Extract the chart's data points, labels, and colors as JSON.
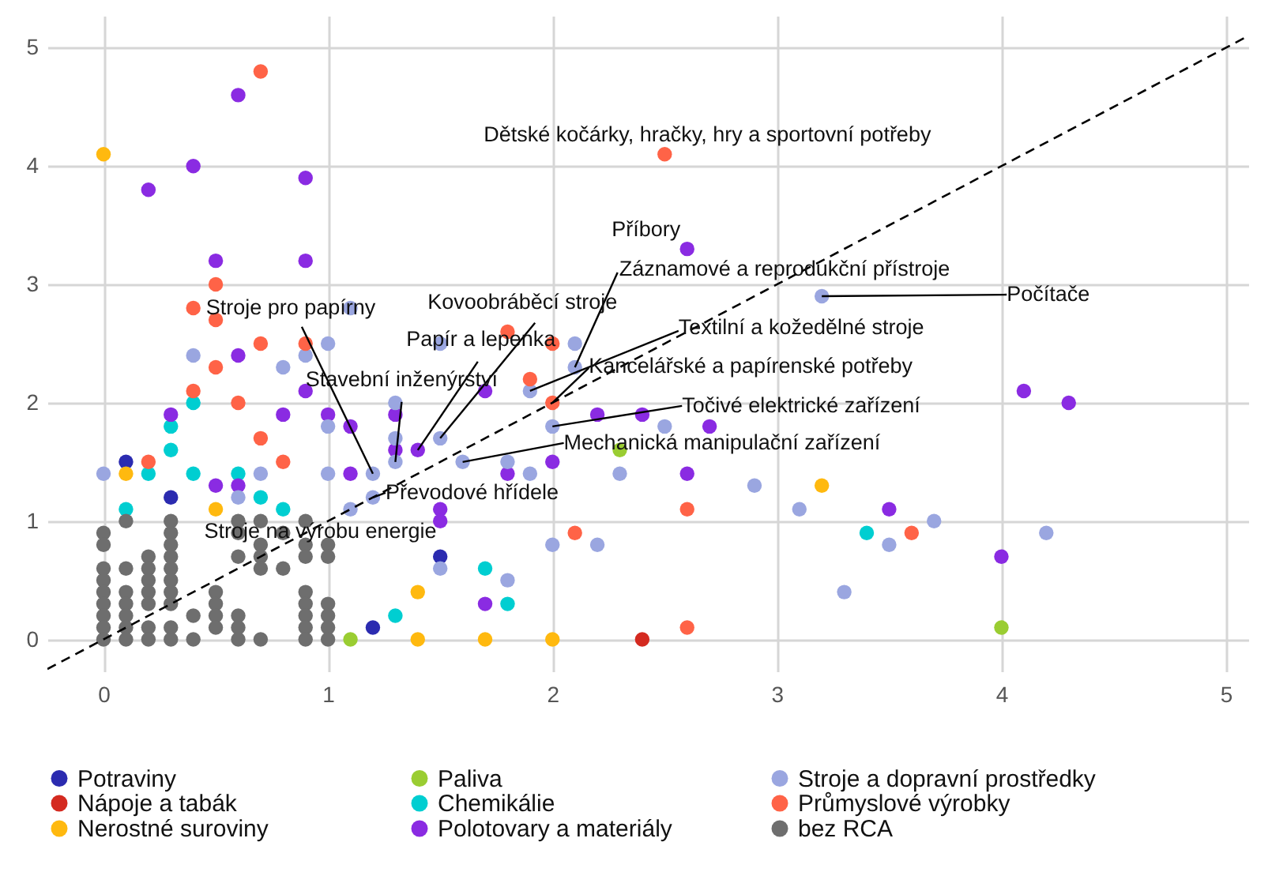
{
  "chart_data": {
    "type": "scatter",
    "marker": "circle",
    "grid": true,
    "legend": "bottom",
    "xlim": [
      -0.25,
      5.1
    ],
    "ylim": [
      -0.27,
      5.27
    ],
    "xticks": [
      0,
      1,
      2,
      3,
      4,
      5
    ],
    "yticks": [
      0,
      1,
      2,
      3,
      4,
      5
    ],
    "series": [
      {
        "name": "Potraviny",
        "color": "#2b2bb0",
        "x": [
          0.1,
          0.3,
          1.2,
          1.5
        ],
        "values": [
          1.5,
          1.2,
          0.1,
          0.7
        ]
      },
      {
        "name": "Nápoje a tabák",
        "color": "#d42a20",
        "x": [
          2.4
        ],
        "values": [
          0
        ]
      },
      {
        "name": "Nerostné suroviny",
        "color": "#ffb90f",
        "x": [
          0,
          0.1,
          0.5,
          1.4,
          1.4,
          1.7,
          2.0,
          3.2
        ],
        "values": [
          4.1,
          1.4,
          1.1,
          0.4,
          0,
          0,
          0,
          1.3
        ]
      },
      {
        "name": "Paliva",
        "color": "#9acd32",
        "x": [
          1.1,
          2.3,
          4.0
        ],
        "values": [
          0,
          1.6,
          0.1
        ]
      },
      {
        "name": "Chemikálie",
        "color": "#00ced1",
        "x": [
          0.1,
          0.2,
          0.3,
          0.3,
          0.4,
          0.4,
          0.6,
          0.7,
          0.8,
          1.3,
          1.7,
          1.8,
          3.4
        ],
        "values": [
          1.1,
          1.4,
          1.8,
          1.6,
          2.0,
          1.4,
          1.4,
          1.2,
          1.1,
          0.2,
          0.6,
          0.3,
          0.9
        ]
      },
      {
        "name": "Polotovary a materiály",
        "color": "#8a2be2",
        "x": [
          0.6,
          0.4,
          0.2,
          0.9,
          0.5,
          0.9,
          0.6,
          0.9,
          0.3,
          0.8,
          1.0,
          1.1,
          0.5,
          0.6,
          1.1,
          1.3,
          1.3,
          1.4,
          1.5,
          1.5,
          1.7,
          1.8,
          2.0,
          2.2,
          2.4,
          2.6,
          2.7,
          2.6,
          1.7,
          4.1,
          4.3,
          3.5,
          4.0
        ],
        "values": [
          4.6,
          4.0,
          3.8,
          3.9,
          3.2,
          3.2,
          2.4,
          2.1,
          1.9,
          1.9,
          1.9,
          1.8,
          1.3,
          1.3,
          1.4,
          1.9,
          1.6,
          1.6,
          1.1,
          1.0,
          2.1,
          1.4,
          1.5,
          1.9,
          1.9,
          3.3,
          1.8,
          1.4,
          0.3,
          2.1,
          2.0,
          1.1,
          0.7
        ]
      },
      {
        "name": "Stroje a dopravní prostředky",
        "color": "#9aa6e0",
        "x": [
          0,
          0.4,
          0.8,
          0.9,
          1.0,
          1.1,
          1.0,
          0.7,
          1.0,
          1.2,
          1.2,
          1.1,
          0.6,
          1.3,
          1.3,
          1.3,
          1.5,
          1.5,
          1.6,
          1.8,
          1.9,
          1.9,
          2.1,
          2.1,
          2.0,
          2.3,
          2.5,
          1.5,
          1.8,
          2.0,
          2.2,
          3.2,
          2.9,
          3.1,
          3.7,
          3.5,
          3.3,
          4.2
        ],
        "values": [
          1.4,
          2.4,
          2.3,
          2.4,
          2.5,
          2.8,
          1.8,
          1.4,
          1.4,
          1.4,
          1.2,
          1.1,
          1.2,
          2.0,
          1.7,
          1.5,
          1.7,
          2.5,
          1.5,
          1.5,
          1.4,
          2.1,
          2.5,
          2.3,
          1.8,
          1.4,
          1.8,
          0.6,
          0.5,
          0.8,
          0.8,
          2.9,
          1.3,
          1.1,
          1.0,
          0.8,
          0.4,
          0.9
        ]
      },
      {
        "name": "Průmyslové výrobky",
        "color": "#ff6347",
        "x": [
          0.7,
          0.5,
          0.4,
          0.5,
          0.7,
          0.9,
          0.5,
          0.4,
          0.6,
          0.7,
          0.8,
          0.2,
          1.8,
          2.0,
          1.9,
          2.0,
          2.6,
          2.1,
          2.6,
          2.5,
          3.6
        ],
        "values": [
          4.8,
          3.0,
          2.8,
          2.7,
          2.5,
          2.5,
          2.3,
          2.1,
          2.0,
          1.7,
          1.5,
          1.5,
          2.6,
          2.5,
          2.2,
          2.0,
          1.1,
          0.9,
          0.1,
          4.1,
          0.9
        ]
      },
      {
        "name": "bez RCA",
        "color": "#6e6e6e",
        "x": [
          0,
          0,
          0,
          0,
          0,
          0,
          0,
          0,
          0,
          0.1,
          0.1,
          0.1,
          0.1,
          0.1,
          0.1,
          0.1,
          0.2,
          0.2,
          0.2,
          0.2,
          0.2,
          0.2,
          0.2,
          0.3,
          0.3,
          0.3,
          0.3,
          0.3,
          0.3,
          0.3,
          0.3,
          0.3,
          0.3,
          0.4,
          0.4,
          0.5,
          0.5,
          0.5,
          0.5,
          0.6,
          0.6,
          0.6,
          0.6,
          0.6,
          0.6,
          0.7,
          0.7,
          0.7,
          0.7,
          0.7,
          0.8,
          0.8,
          0.9,
          0.9,
          0.9,
          0.9,
          0.9,
          0.9,
          0.9,
          0.9,
          1.0,
          1.0,
          1.0,
          1.0,
          1.0,
          1.0
        ],
        "values": [
          0.9,
          0.8,
          0.6,
          0.5,
          0.4,
          0.3,
          0.2,
          0.1,
          0,
          1.0,
          0.6,
          0.4,
          0.3,
          0.2,
          0.1,
          0,
          0.7,
          0.6,
          0.5,
          0.4,
          0.3,
          0.1,
          0,
          1.0,
          0.9,
          0.8,
          0.7,
          0.6,
          0.5,
          0.4,
          0.3,
          0.1,
          0,
          0.2,
          0,
          0.4,
          0.3,
          0.2,
          0.1,
          1.0,
          0.9,
          0.7,
          0.2,
          0.1,
          0,
          1.0,
          0.8,
          0.7,
          0.6,
          0,
          0.9,
          0.6,
          1.0,
          0.8,
          0.7,
          0.4,
          0.3,
          0.2,
          0.1,
          0,
          0.8,
          0.7,
          0.3,
          0.2,
          0.1,
          0
        ]
      },
      {
        "type": "line",
        "line_style": "dashed",
        "marker": "none",
        "color": "#000000",
        "x": [
          -0.25,
          5.1
        ],
        "values": [
          -0.25,
          5.1
        ]
      }
    ],
    "annotations": [
      {
        "text": "Dětské kočárky, hračky, hry a sportovní potřeby",
        "x": 2.5,
        "y": 4.1
      },
      {
        "text": "Příbory",
        "x": 2.6,
        "y": 3.3
      },
      {
        "text": "Záznamové a reprodukční přístroje",
        "x": 2.1,
        "y": 2.3
      },
      {
        "text": "Počítače",
        "x": 3.2,
        "y": 2.9
      },
      {
        "text": "Stroje pro papírny",
        "x": 1.2,
        "y": 1.4
      },
      {
        "text": "Kovoobráběcí stroje",
        "x": 1.5,
        "y": 1.7
      },
      {
        "text": "Papír a lepenka",
        "x": 1.4,
        "y": 1.6
      },
      {
        "text": "Stavební inženýrství",
        "x": 1.3,
        "y": 1.5
      },
      {
        "text": "Textilní a kožedělné stroje",
        "x": 1.9,
        "y": 2.1
      },
      {
        "text": "Kancelářské a papírenské potřeby",
        "x": 2.0,
        "y": 2.0
      },
      {
        "text": "Točivé elektrické zařízení",
        "x": 2.0,
        "y": 1.8
      },
      {
        "text": "Mechanická manipulační zařízení",
        "x": 1.6,
        "y": 1.5
      },
      {
        "text": "Převodové hřídele",
        "x": 1.2,
        "y": 1.2
      },
      {
        "text": "Stroje na výrobu energie",
        "x": 1.1,
        "y": 1.1
      }
    ]
  }
}
